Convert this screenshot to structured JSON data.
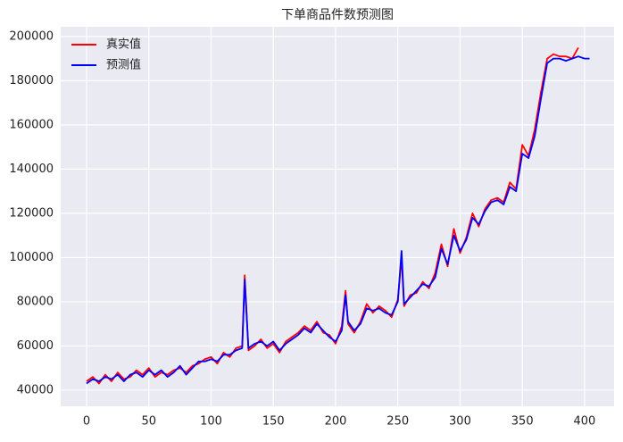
{
  "chart_data": {
    "type": "line",
    "title": "下单商品件数预测图",
    "x": [
      0,
      5,
      10,
      15,
      20,
      25,
      30,
      35,
      40,
      45,
      50,
      55,
      60,
      65,
      70,
      75,
      80,
      85,
      90,
      95,
      100,
      105,
      110,
      115,
      120,
      125,
      127,
      130,
      135,
      140,
      145,
      150,
      155,
      160,
      165,
      170,
      175,
      180,
      185,
      190,
      195,
      200,
      205,
      208,
      210,
      215,
      220,
      225,
      230,
      235,
      240,
      245,
      250,
      253,
      255,
      260,
      265,
      270,
      275,
      280,
      285,
      290,
      295,
      300,
      305,
      310,
      315,
      320,
      325,
      330,
      335,
      340,
      345,
      350,
      355,
      360,
      365,
      370,
      375,
      380,
      385,
      390,
      395,
      400,
      404
    ],
    "series": [
      {
        "name": "真实值",
        "color": "#ff0000",
        "values": [
          44000,
          46000,
          43000,
          47000,
          44000,
          48000,
          45000,
          46000,
          49000,
          47000,
          50000,
          46000,
          48000,
          47000,
          49000,
          50000,
          48000,
          51000,
          52000,
          54000,
          55000,
          52000,
          57000,
          55000,
          59000,
          60000,
          92000,
          58000,
          60000,
          63000,
          59000,
          61000,
          57000,
          62000,
          64000,
          66000,
          69000,
          67000,
          71000,
          66000,
          65000,
          61000,
          69000,
          85000,
          70000,
          66000,
          71000,
          79000,
          75000,
          78000,
          76000,
          73000,
          81000,
          100000,
          78000,
          83000,
          84000,
          89000,
          86000,
          93000,
          106000,
          96000,
          113000,
          102000,
          109000,
          120000,
          114000,
          122000,
          126000,
          127000,
          125000,
          134000,
          131000,
          151000,
          146000,
          158000,
          175000,
          190000,
          192000,
          191000,
          191000,
          190000,
          195000,
          null,
          null
        ]
      },
      {
        "name": "预测值",
        "color": "#0000ff",
        "values": [
          43000,
          45000,
          44000,
          46000,
          45000,
          47000,
          44000,
          47000,
          48000,
          46000,
          49000,
          47000,
          49000,
          46000,
          48000,
          51000,
          47000,
          50000,
          53000,
          53000,
          54000,
          53000,
          56000,
          56000,
          58000,
          59000,
          90000,
          59000,
          61000,
          62000,
          60000,
          62000,
          58000,
          61000,
          63000,
          65000,
          68000,
          66000,
          70000,
          67000,
          64000,
          62000,
          67000,
          83000,
          71000,
          67000,
          70000,
          77000,
          76000,
          77000,
          75000,
          74000,
          80000,
          103000,
          79000,
          82000,
          85000,
          88000,
          87000,
          91000,
          104000,
          97000,
          110000,
          103000,
          108000,
          118000,
          115000,
          121000,
          125000,
          126000,
          124000,
          132000,
          130000,
          147000,
          145000,
          155000,
          172000,
          188000,
          190000,
          190000,
          189000,
          190000,
          191000,
          190000,
          190000
        ]
      }
    ],
    "xlim": [
      -20.8,
      423.7
    ],
    "ylim": [
      32700,
      204400
    ],
    "xticks": [
      0,
      50,
      100,
      150,
      200,
      250,
      300,
      350,
      400
    ],
    "yticks": [
      40000,
      60000,
      80000,
      100000,
      120000,
      140000,
      160000,
      180000,
      200000
    ],
    "grid": true,
    "legend": "upper left"
  }
}
